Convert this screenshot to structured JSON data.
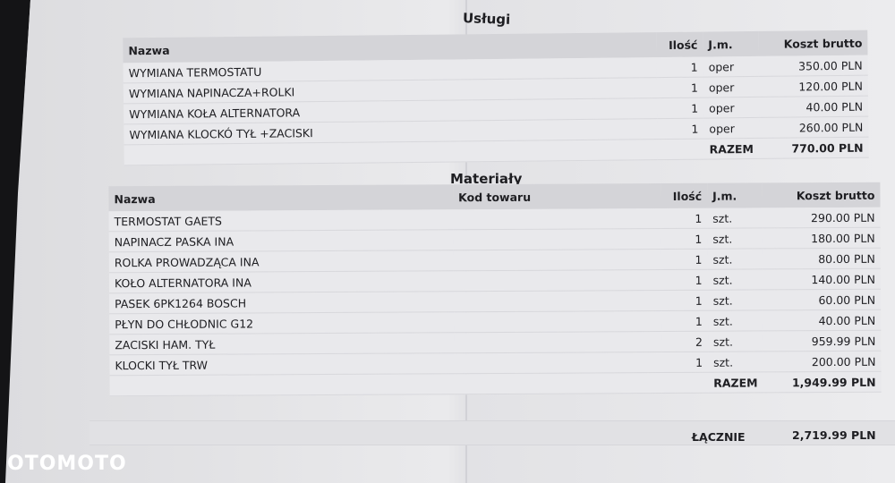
{
  "uslugi": {
    "title": "Usługi",
    "headers": {
      "name": "Nazwa",
      "qty": "Ilość",
      "unit": "J.m.",
      "cost": "Koszt brutto"
    },
    "rows": [
      {
        "name": "WYMIANA TERMOSTATU",
        "qty": "1",
        "unit": "oper",
        "cost": "350.00 PLN"
      },
      {
        "name": "WYMIANA NAPINACZA+ROLKI",
        "qty": "1",
        "unit": "oper",
        "cost": "120.00 PLN"
      },
      {
        "name": "WYMIANA KOŁA ALTERNATORA",
        "qty": "1",
        "unit": "oper",
        "cost": "40.00 PLN"
      },
      {
        "name": "WYMIANA KLOCKÓ TYŁ +ZACISKI",
        "qty": "1",
        "unit": "oper",
        "cost": "260.00 PLN"
      }
    ],
    "total_label": "RAZEM",
    "total": "770.00 PLN"
  },
  "materialy": {
    "title": "Materiały",
    "headers": {
      "name": "Nazwa",
      "code": "Kod towaru",
      "qty": "Ilość",
      "unit": "J.m.",
      "cost": "Koszt brutto"
    },
    "rows": [
      {
        "name": "TERMOSTAT GAETS",
        "qty": "1",
        "unit": "szt.",
        "cost": "290.00 PLN"
      },
      {
        "name": "NAPINACZ PASKA INA",
        "qty": "1",
        "unit": "szt.",
        "cost": "180.00 PLN"
      },
      {
        "name": "ROLKA PROWADZĄCA INA",
        "qty": "1",
        "unit": "szt.",
        "cost": "80.00 PLN"
      },
      {
        "name": "KOŁO ALTERNATORA INA",
        "qty": "1",
        "unit": "szt.",
        "cost": "140.00 PLN"
      },
      {
        "name": "PASEK 6PK1264 BOSCH",
        "qty": "1",
        "unit": "szt.",
        "cost": "60.00 PLN"
      },
      {
        "name": "PŁYN DO CHŁODNIC G12",
        "qty": "1",
        "unit": "szt.",
        "cost": "40.00 PLN"
      },
      {
        "name": "ZACISKI HAM. TYŁ",
        "qty": "2",
        "unit": "szt.",
        "cost": "959.99 PLN"
      },
      {
        "name": "KLOCKI TYŁ TRW",
        "qty": "1",
        "unit": "szt.",
        "cost": "200.00 PLN"
      }
    ],
    "total_label": "RAZEM",
    "total": "1,949.99 PLN"
  },
  "grand_total": {
    "label": "ŁĄCZNIE",
    "value": "2,719.99 PLN"
  },
  "watermark": "OTOMOTO"
}
